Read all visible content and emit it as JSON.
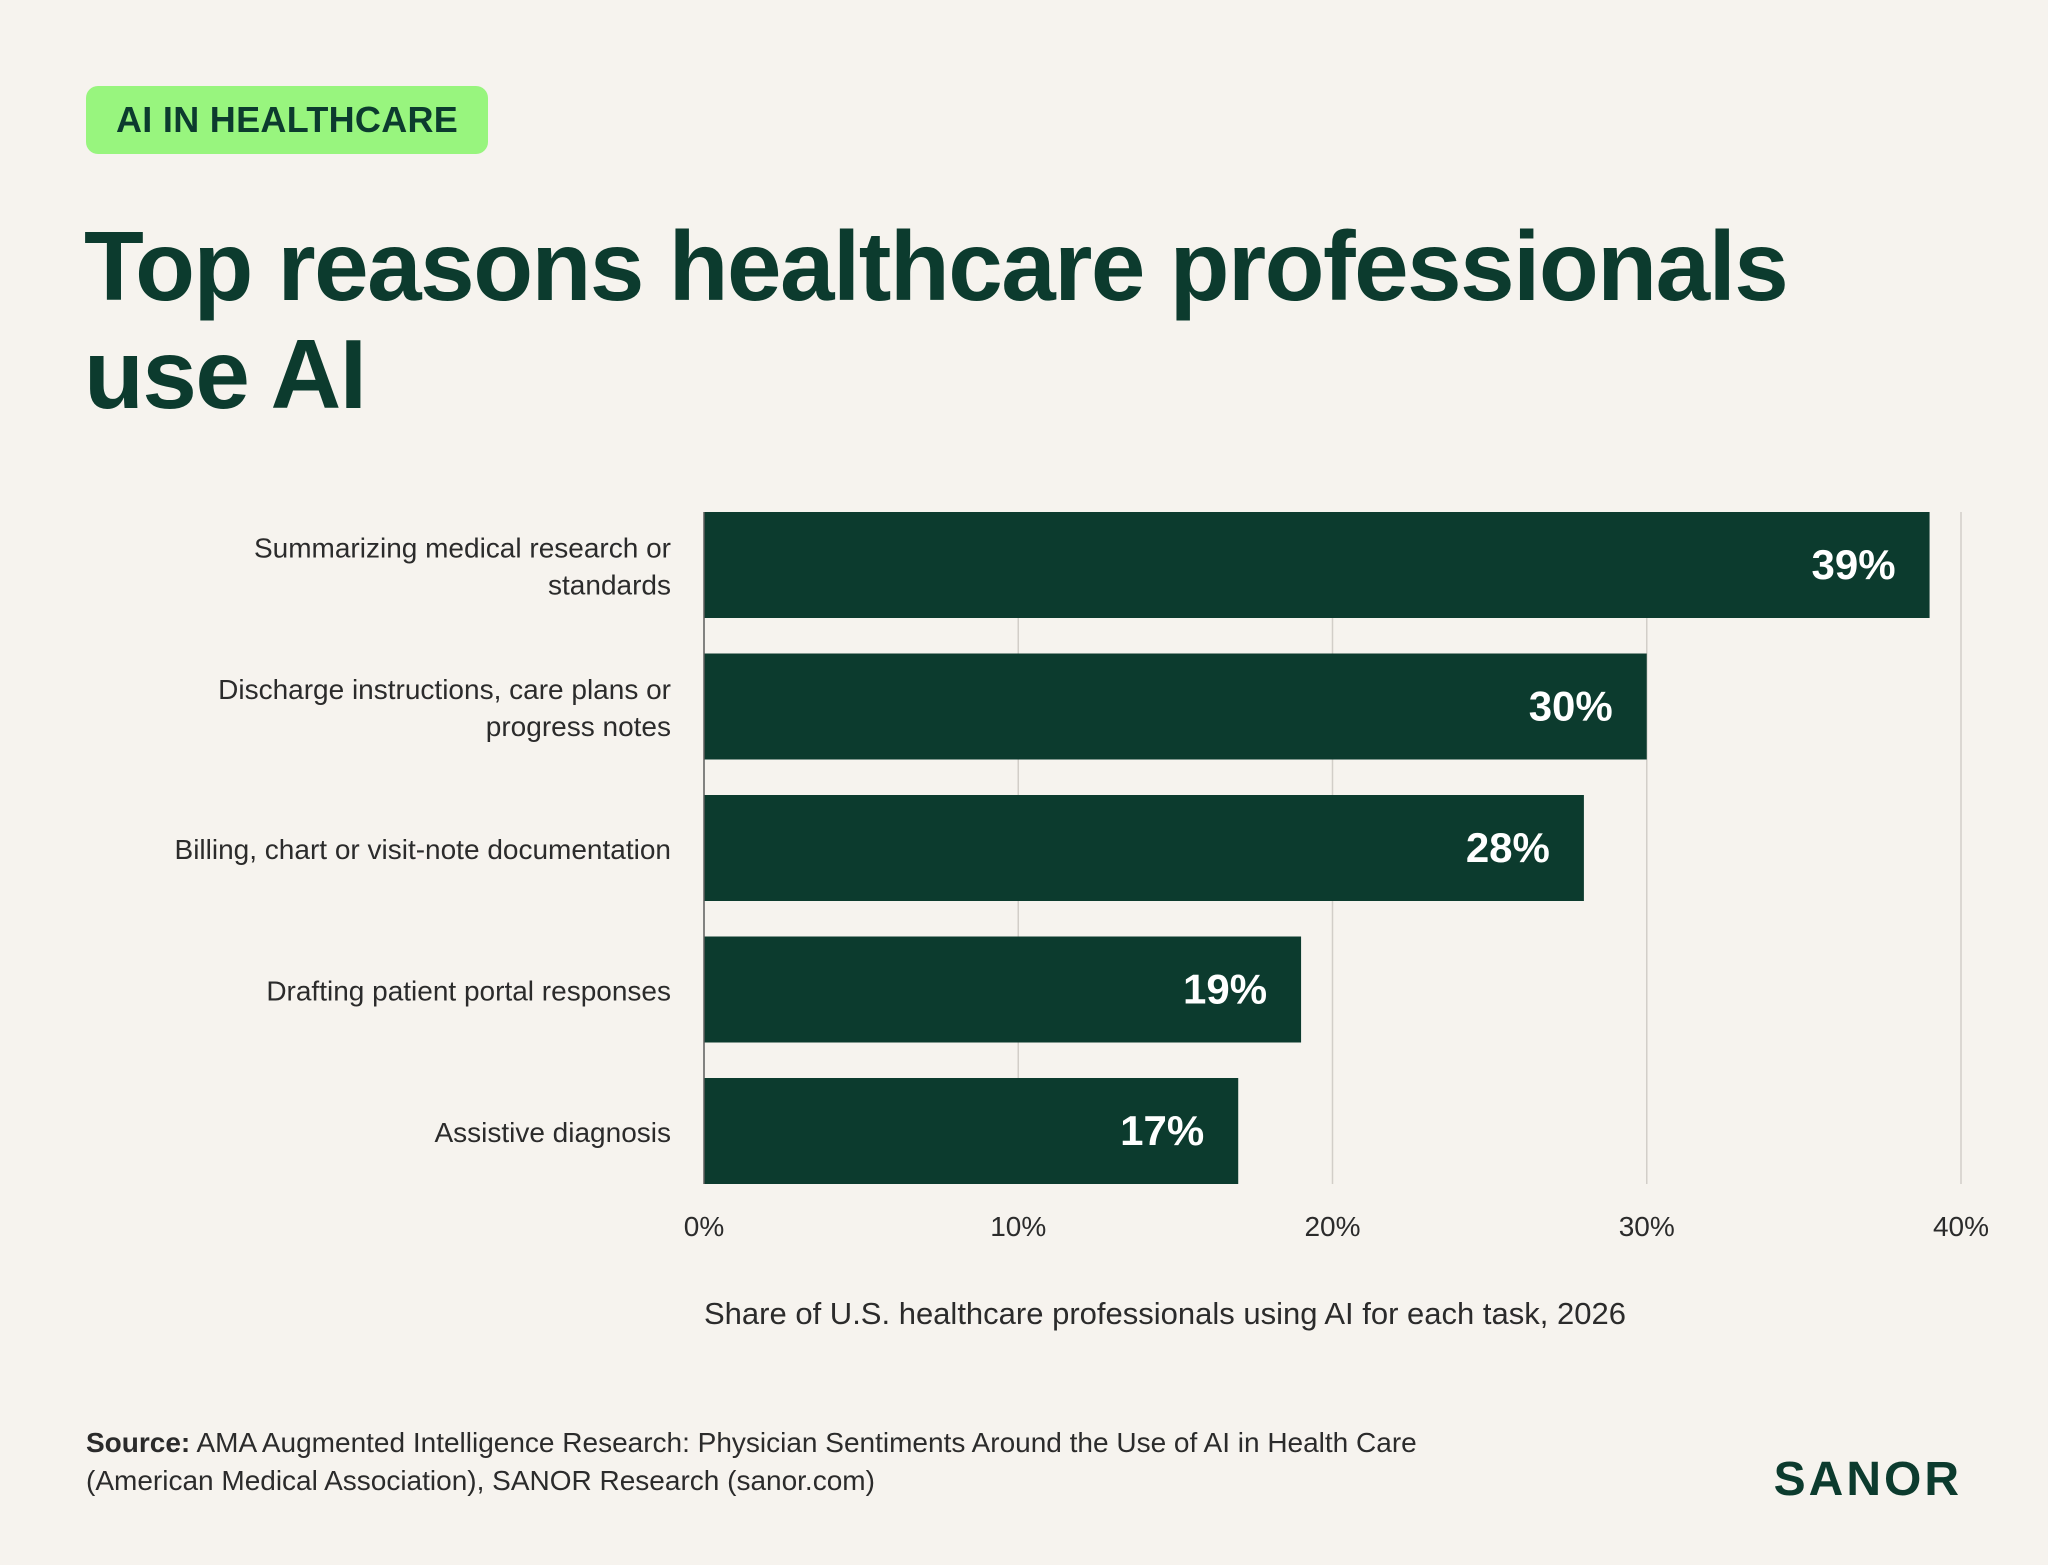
{
  "tag": "AI IN HEALTHCARE",
  "title": "Top reasons healthcare professionals use AI",
  "source_label": "Source:",
  "source_text": "AMA Augmented Intelligence Research: Physician Sentiments Around the Use of AI in Health Care (American Medical Association), SANOR Research (sanor.com)",
  "brand": "SANOR",
  "colors": {
    "background": "#f6f3ee",
    "bar": "#0c3b2e",
    "tag_bg": "#98f57e",
    "title": "#0c3b2e",
    "grid": "#d2cec8"
  },
  "chart_data": {
    "type": "bar",
    "orientation": "horizontal",
    "categories": [
      "Summarizing medical research or standards",
      "Discharge instructions, care plans or progress notes",
      "Billing, chart or visit-note documentation",
      "Drafting patient portal responses",
      "Assistive diagnosis"
    ],
    "category_lines": [
      [
        "Summarizing medical research or",
        "standards"
      ],
      [
        "Discharge instructions, care plans or",
        "progress notes"
      ],
      [
        "Billing, chart or visit-note documentation"
      ],
      [
        "Drafting patient portal responses"
      ],
      [
        "Assistive diagnosis"
      ]
    ],
    "values": [
      39,
      30,
      28,
      19,
      17
    ],
    "value_labels": [
      "39%",
      "30%",
      "28%",
      "19%",
      "17%"
    ],
    "xlim": [
      0,
      40
    ],
    "xticks": [
      0,
      10,
      20,
      30,
      40
    ],
    "xtick_labels": [
      "0%",
      "10%",
      "20%",
      "30%",
      "40%"
    ],
    "xlabel": "Share of U.S. healthcare professionals using AI for each task, 2026",
    "grid": true
  }
}
